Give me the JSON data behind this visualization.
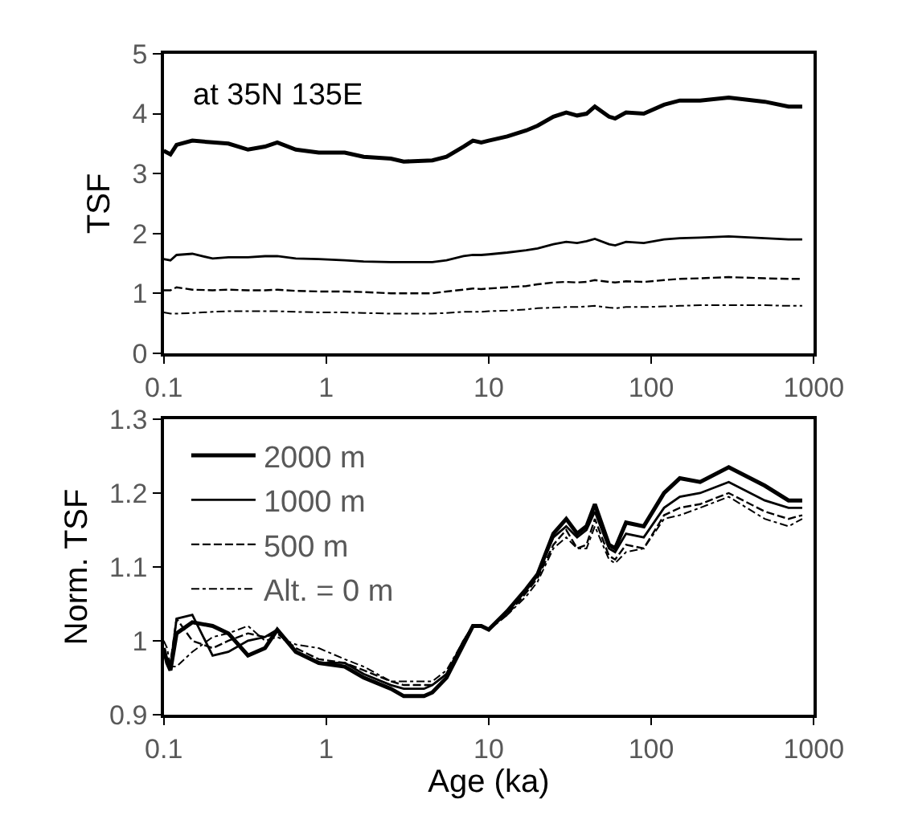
{
  "chart_data": [
    {
      "type": "line",
      "ylabel": "TSF",
      "annotations": [
        "at 35N 135E"
      ],
      "log": "x",
      "legend": false,
      "marker": "none",
      "x": [
        0.1,
        0.11,
        0.12,
        0.15,
        0.2,
        0.25,
        0.33,
        0.42,
        0.5,
        0.65,
        0.9,
        1.3,
        1.7,
        2.5,
        3,
        4.5,
        5.5,
        7,
        8,
        9,
        10,
        13,
        17,
        20,
        25,
        30,
        35,
        40,
        45,
        55,
        60,
        70,
        90,
        120,
        150,
        200,
        300,
        500,
        700,
        850
      ],
      "xlim": [
        0.1,
        1000
      ],
      "xticks": [
        0.1,
        1,
        10,
        100,
        1000
      ],
      "ylim": [
        0,
        5
      ],
      "yticks": [
        0,
        1,
        2,
        3,
        4,
        5
      ],
      "series": [
        {
          "color": "#000000",
          "line_style": "solid",
          "values": [
            3.38,
            3.32,
            3.48,
            3.55,
            3.52,
            3.5,
            3.4,
            3.45,
            3.52,
            3.4,
            3.35,
            3.35,
            3.28,
            3.25,
            3.2,
            3.22,
            3.28,
            3.45,
            3.55,
            3.52,
            3.55,
            3.62,
            3.72,
            3.8,
            3.95,
            4.02,
            3.97,
            4.0,
            4.12,
            3.95,
            3.92,
            4.02,
            4.0,
            4.15,
            4.22,
            4.22,
            4.27,
            4.2,
            4.12,
            4.12
          ]
        },
        {
          "color": "#000000",
          "line_style": "solid",
          "values": [
            1.57,
            1.55,
            1.64,
            1.66,
            1.58,
            1.6,
            1.6,
            1.62,
            1.62,
            1.58,
            1.57,
            1.55,
            1.53,
            1.52,
            1.52,
            1.52,
            1.55,
            1.62,
            1.64,
            1.64,
            1.65,
            1.68,
            1.72,
            1.75,
            1.82,
            1.86,
            1.84,
            1.87,
            1.91,
            1.82,
            1.8,
            1.86,
            1.84,
            1.9,
            1.92,
            1.93,
            1.95,
            1.92,
            1.9,
            1.9
          ]
        },
        {
          "color": "#000000",
          "line_style": "dashed",
          "values": [
            1.05,
            1.05,
            1.1,
            1.06,
            1.05,
            1.06,
            1.05,
            1.05,
            1.06,
            1.04,
            1.03,
            1.03,
            1.02,
            1.0,
            1.0,
            1.0,
            1.03,
            1.06,
            1.08,
            1.07,
            1.08,
            1.1,
            1.12,
            1.15,
            1.18,
            1.19,
            1.18,
            1.19,
            1.22,
            1.19,
            1.18,
            1.2,
            1.19,
            1.22,
            1.24,
            1.25,
            1.27,
            1.25,
            1.24,
            1.24
          ]
        },
        {
          "color": "#000000",
          "line_style": "dashdot",
          "values": [
            0.68,
            0.66,
            0.66,
            0.67,
            0.69,
            0.7,
            0.7,
            0.7,
            0.7,
            0.69,
            0.68,
            0.68,
            0.67,
            0.66,
            0.66,
            0.66,
            0.67,
            0.69,
            0.69,
            0.69,
            0.7,
            0.71,
            0.73,
            0.75,
            0.76,
            0.77,
            0.77,
            0.78,
            0.79,
            0.76,
            0.75,
            0.77,
            0.77,
            0.78,
            0.79,
            0.8,
            0.8,
            0.8,
            0.79,
            0.79
          ]
        }
      ]
    },
    {
      "type": "line",
      "ylabel": "Norm. TSF",
      "xlabel": "Age (ka)",
      "log": "x",
      "legend": "top left",
      "marker": "none",
      "x": [
        0.1,
        0.105,
        0.11,
        0.12,
        0.15,
        0.2,
        0.25,
        0.33,
        0.42,
        0.5,
        0.65,
        0.9,
        1.3,
        1.7,
        2.5,
        3,
        4,
        4.5,
        5.5,
        7,
        8,
        9,
        10,
        13,
        17,
        20,
        25,
        30,
        35,
        40,
        45,
        55,
        60,
        70,
        90,
        120,
        150,
        200,
        300,
        500,
        700,
        850
      ],
      "xlim": [
        0.1,
        1000
      ],
      "xticks": [
        0.1,
        1,
        10,
        100,
        1000
      ],
      "ylim": [
        0.9,
        1.3
      ],
      "yticks": [
        {
          "value": 0.9,
          "label": "0.9"
        },
        {
          "value": 1.0,
          "label": "1"
        },
        1.1,
        1.2,
        1.3
      ],
      "series": [
        {
          "name": "2000 m",
          "color": "#000000",
          "line_style": "solid",
          "values": [
            0.99,
            0.97,
            0.96,
            1.01,
            1.025,
            1.02,
            1.01,
            0.98,
            0.99,
            1.015,
            0.985,
            0.97,
            0.965,
            0.95,
            0.935,
            0.925,
            0.925,
            0.93,
            0.95,
            0.995,
            1.02,
            1.02,
            1.015,
            1.04,
            1.07,
            1.09,
            1.145,
            1.165,
            1.145,
            1.155,
            1.185,
            1.13,
            1.125,
            1.16,
            1.155,
            1.2,
            1.22,
            1.215,
            1.235,
            1.21,
            1.19,
            1.19
          ]
        },
        {
          "name": "1000 m",
          "color": "#000000",
          "line_style": "solid",
          "values": [
            0.985,
            0.975,
            0.965,
            1.03,
            1.035,
            0.98,
            0.985,
            1.0,
            1.005,
            1.015,
            0.985,
            0.97,
            0.97,
            0.955,
            0.94,
            0.935,
            0.935,
            0.94,
            0.955,
            1.0,
            1.02,
            1.02,
            1.015,
            1.04,
            1.07,
            1.09,
            1.14,
            1.155,
            1.14,
            1.15,
            1.175,
            1.125,
            1.12,
            1.145,
            1.14,
            1.18,
            1.195,
            1.2,
            1.215,
            1.19,
            1.18,
            1.18
          ]
        },
        {
          "name": "500 m",
          "color": "#000000",
          "line_style": "dashed",
          "values": [
            0.99,
            0.975,
            0.97,
            1.03,
            1.0,
            0.99,
            1.0,
            1.01,
            1.005,
            1.01,
            0.99,
            0.975,
            0.97,
            0.96,
            0.945,
            0.94,
            0.94,
            0.94,
            0.955,
            1.0,
            1.02,
            1.02,
            1.015,
            1.035,
            1.065,
            1.085,
            1.13,
            1.15,
            1.125,
            1.13,
            1.165,
            1.115,
            1.11,
            1.13,
            1.125,
            1.17,
            1.18,
            1.185,
            1.2,
            1.175,
            1.165,
            1.17
          ]
        },
        {
          "name": "Alt. = 0 m",
          "color": "#000000",
          "line_style": "dashdot",
          "values": [
            1.0,
            0.99,
            0.965,
            0.965,
            0.985,
            1.005,
            1.01,
            1.02,
            1.0,
            1.005,
            0.995,
            0.99,
            0.975,
            0.965,
            0.945,
            0.945,
            0.945,
            0.945,
            0.96,
            1.0,
            1.02,
            1.02,
            1.015,
            1.035,
            1.06,
            1.08,
            1.125,
            1.14,
            1.125,
            1.125,
            1.155,
            1.11,
            1.105,
            1.12,
            1.125,
            1.165,
            1.17,
            1.18,
            1.195,
            1.165,
            1.155,
            1.165
          ]
        }
      ]
    }
  ]
}
